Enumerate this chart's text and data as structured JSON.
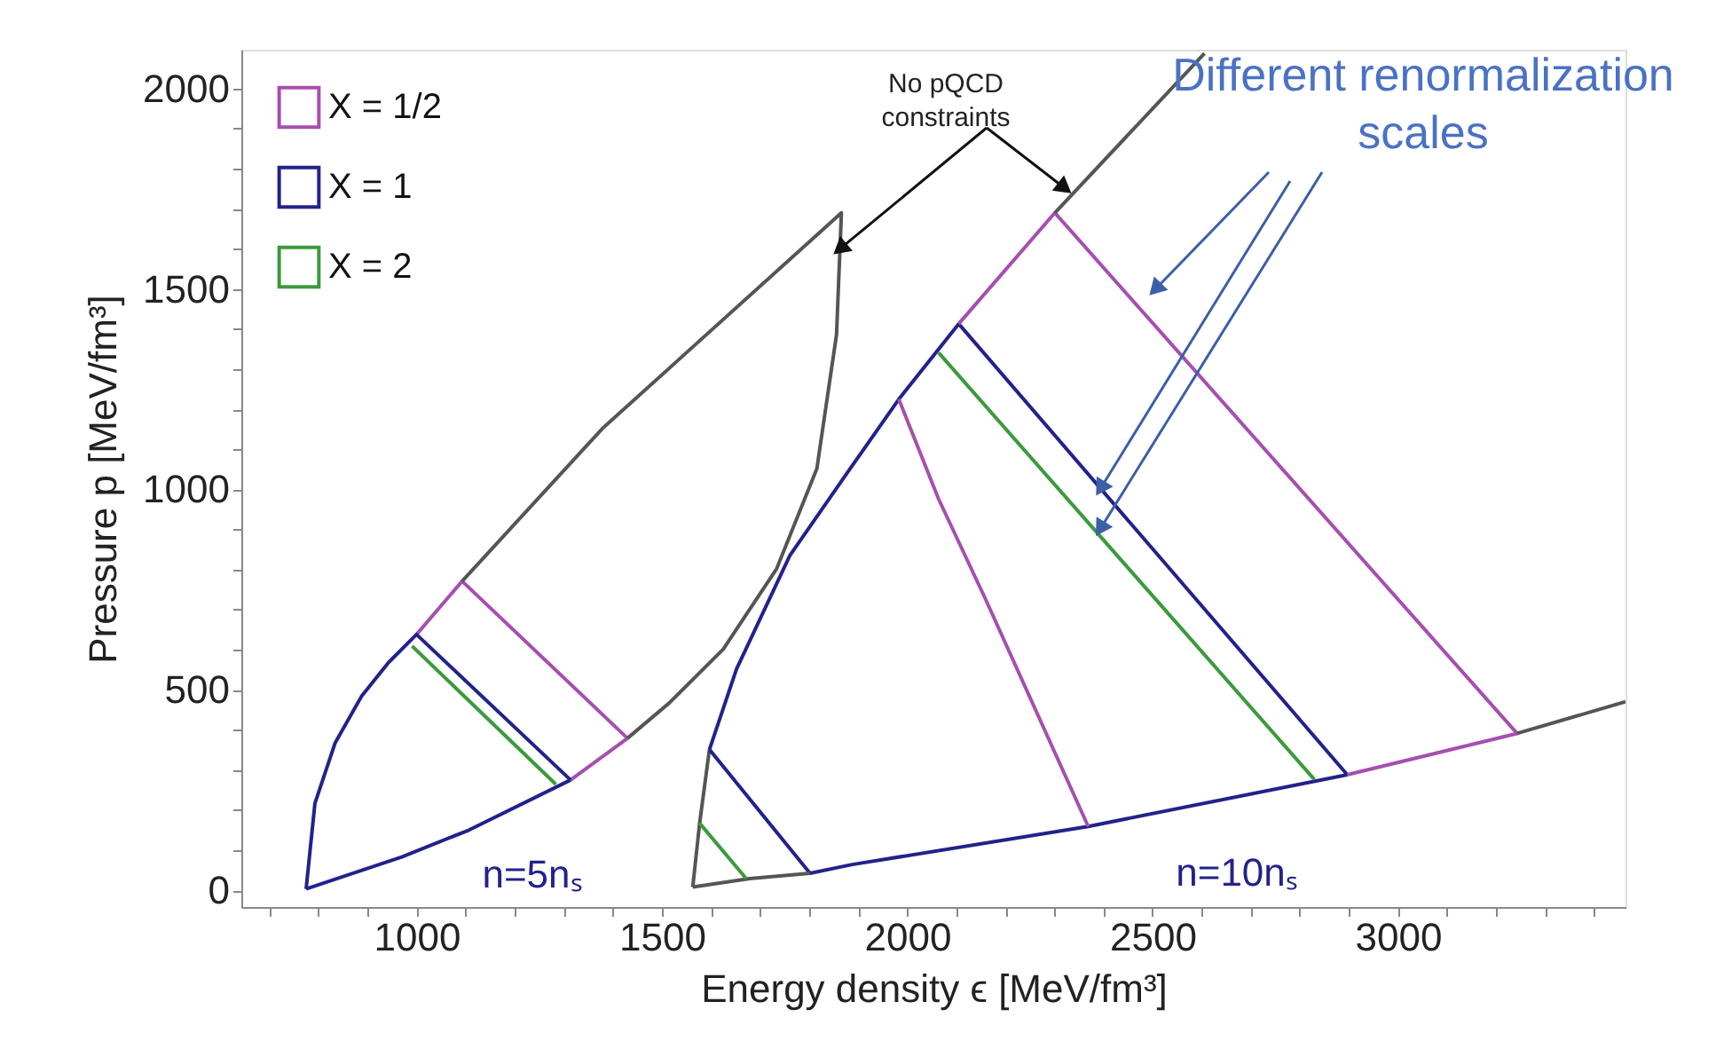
{
  "chart_data": {
    "type": "line",
    "xlabel": "Energy density ϵ [MeV/fm³]",
    "ylabel": "Pressure p [MeV/fm³]",
    "xlim": [
      643,
      3464
    ],
    "ylim": [
      -42,
      2097
    ],
    "xticks": [
      {
        "value": 700,
        "label": null
      },
      {
        "value": 800,
        "label": null
      },
      {
        "value": 900,
        "label": null
      },
      1000,
      {
        "value": 1100,
        "label": null
      },
      {
        "value": 1200,
        "label": null
      },
      {
        "value": 1300,
        "label": null
      },
      {
        "value": 1400,
        "label": null
      },
      1500,
      {
        "value": 1600,
        "label": null
      },
      {
        "value": 1700,
        "label": null
      },
      {
        "value": 1800,
        "label": null
      },
      {
        "value": 1900,
        "label": null
      },
      2000,
      {
        "value": 2100,
        "label": null
      },
      {
        "value": 2200,
        "label": null
      },
      {
        "value": 2300,
        "label": null
      },
      {
        "value": 2400,
        "label": null
      },
      2500,
      {
        "value": 2600,
        "label": null
      },
      {
        "value": 2700,
        "label": null
      },
      {
        "value": 2800,
        "label": null
      },
      {
        "value": 2900,
        "label": null
      },
      3000,
      {
        "value": 3100,
        "label": null
      },
      {
        "value": 3200,
        "label": null
      },
      {
        "value": 3300,
        "label": null
      },
      {
        "value": 3400,
        "label": null
      }
    ],
    "yticks": [
      0,
      {
        "value": 100,
        "label": null
      },
      {
        "value": 200,
        "label": null
      },
      {
        "value": 300,
        "label": null
      },
      {
        "value": 400,
        "label": null
      },
      500,
      {
        "value": 600,
        "label": null
      },
      {
        "value": 700,
        "label": null
      },
      {
        "value": 800,
        "label": null
      },
      {
        "value": 900,
        "label": null
      },
      1000,
      {
        "value": 1100,
        "label": null
      },
      {
        "value": 1200,
        "label": null
      },
      {
        "value": 1300,
        "label": null
      },
      {
        "value": 1400,
        "label": null
      },
      1500,
      {
        "value": 1600,
        "label": null
      },
      {
        "value": 1700,
        "label": null
      },
      {
        "value": 1800,
        "label": null
      },
      {
        "value": 1900,
        "label": null
      },
      2000
    ],
    "grid": false,
    "legend": "top left",
    "marker": "none",
    "line_style": "solid",
    "series": [
      {
        "name": "X = 1/2",
        "color": "#a64fb0",
        "x": [
          1000,
          1093,
          1430,
          1314
        ],
        "values": [
          638,
          771,
          379,
          275
        ]
      },
      {
        "name": "X = 1",
        "color": "#22228c",
        "x": [
          775,
          793,
          834,
          888,
          943,
          1000,
          1314
        ],
        "values": [
          3,
          217,
          367,
          484,
          568,
          638,
          275
        ]
      },
      {
        "name": "X = 2",
        "color": "#3c9a3c",
        "x": [
          991,
          1284
        ],
        "values": [
          609,
          264
        ]
      },
      {
        "color": "#555555",
        "x": [
          1093,
          1379,
          1866,
          1856,
          1816,
          1734,
          1625,
          1515,
          1430
        ],
        "values": [
          771,
          1152,
          1690,
          1386,
          1052,
          802,
          601,
          467,
          379
        ]
      },
      {
        "color": "#22228c",
        "x": [
          1314,
          1107,
          970,
          775
        ],
        "values": [
          275,
          150,
          83,
          3
        ]
      },
      {
        "color": "#555555",
        "x": [
          1563,
          1577,
          1597
        ],
        "values": [
          8,
          167,
          351
        ]
      },
      {
        "color": "#22228c",
        "x": [
          1597,
          1652,
          1761,
          1884,
          1983,
          2105,
          2897
        ],
        "values": [
          351,
          551,
          835,
          1052,
          1225,
          1413,
          288
        ]
      },
      {
        "color": "#a64fb0",
        "x": [
          2105,
          2301,
          3243,
          2897
        ],
        "values": [
          1413,
          1690,
          391,
          288
        ]
      },
      {
        "color": "#555555",
        "x": [
          2301,
          2606
        ],
        "values": [
          1690,
          2088
        ]
      },
      {
        "color": "#555555",
        "x": [
          3243,
          3464
        ],
        "values": [
          391,
          470
        ]
      },
      {
        "color": "#22228c",
        "x": [
          2897,
          2369,
          1888,
          1802,
          1597
        ],
        "values": [
          288,
          159,
          64,
          42,
          351
        ]
      },
      {
        "color": "#555555",
        "x": [
          1563,
          1679,
          1802
        ],
        "values": [
          8,
          29,
          42
        ]
      },
      {
        "color": "#a64fb0",
        "x": [
          1983,
          2064,
          2159,
          2369
        ],
        "values": [
          1225,
          976,
          728,
          159
        ]
      },
      {
        "color": "#3c9a3c",
        "x": [
          2064,
          2830
        ],
        "values": [
          1341,
          276
        ]
      },
      {
        "color": "#3c9a3c",
        "x": [
          1577,
          1672
        ],
        "values": [
          167,
          29
        ]
      }
    ],
    "annotations": [
      {
        "text": "No pQCD\nconstraints",
        "x": 1863,
        "y": 1600
      },
      {
        "text": "Different renormalization\nscales",
        "x": 2394,
        "y": 1002
      },
      "n=5nₛ",
      "n=10nₛ"
    ]
  }
}
